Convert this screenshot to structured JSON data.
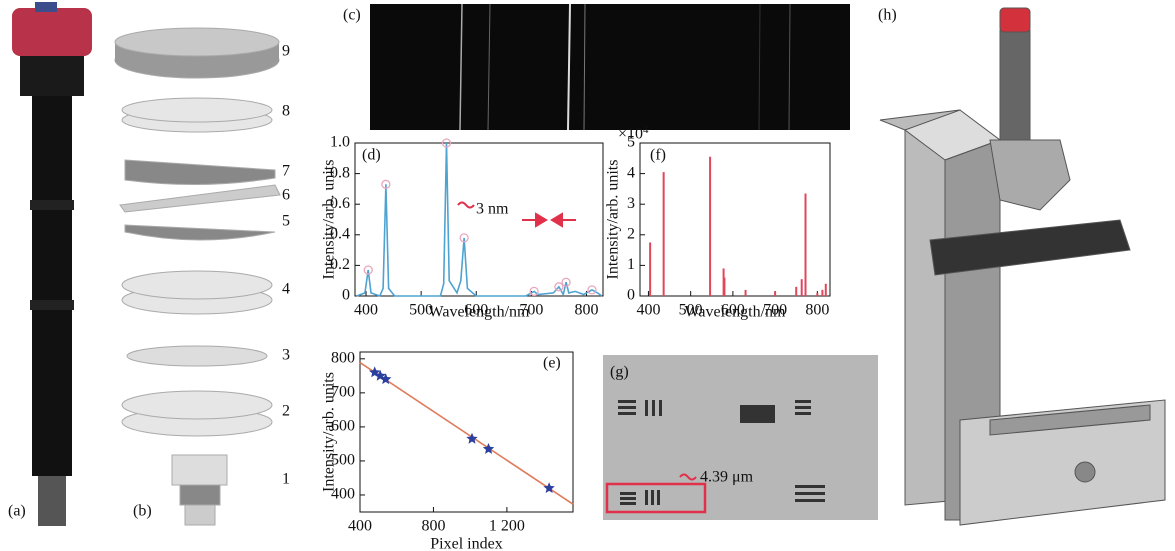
{
  "panel_labels": [
    "(a)",
    "(b)",
    "(c)",
    "(d)",
    "(e)",
    "(f)",
    "(g)",
    "(h)"
  ],
  "layer_numbers": [
    "9",
    "8",
    "7",
    "6",
    "5",
    "4",
    "3",
    "2",
    "1"
  ],
  "chart_data": [
    {
      "type": "line",
      "x_label": "Wavelength/nm",
      "y_label": "Intensity/arb. units",
      "annotation": "3 nm",
      "xlim": [
        380,
        830
      ],
      "xticks": [
        400,
        500,
        600,
        700,
        800
      ],
      "ylim": [
        0,
        1
      ],
      "yticks": [
        0,
        0.2,
        0.4,
        0.6,
        0.8,
        {
          "value": 1,
          "label": "1.0"
        }
      ],
      "series": [
        {
          "color": "#4fa3d1",
          "x": [
            383,
            398,
            404,
            409,
            425,
            431,
            436,
            441,
            452,
            535,
            541,
            546,
            551,
            565,
            572,
            578,
            584,
            600,
            690,
            700,
            705,
            712,
            740,
            750,
            758,
            763,
            768,
            780,
            795,
            810,
            820,
            828
          ],
          "values": [
            0,
            0.02,
            0.17,
            0.02,
            0,
            0.05,
            0.73,
            0.05,
            0,
            0,
            0.08,
            1.0,
            0.1,
            0.02,
            0.1,
            0.38,
            0.05,
            0,
            0,
            0.02,
            0.03,
            0.01,
            0.02,
            0.06,
            0.01,
            0.09,
            0.02,
            0.03,
            0.01,
            0.04,
            0.02,
            0
          ]
        },
        {
          "color": "#e8a6bf",
          "marker": "circle",
          "x": [
            404,
            436,
            546,
            578,
            705,
            750,
            763,
            810
          ],
          "values": [
            0.17,
            0.73,
            1.0,
            0.38,
            0.03,
            0.06,
            0.09,
            0.04
          ]
        }
      ]
    },
    {
      "type": "stem",
      "x_label": "Wavelength/nm",
      "y_label": "Intensity/arb. units",
      "y_scale_label": "×10",
      "y_scale_exponent": "4",
      "color": "#e0475a",
      "xlim": [
        380,
        830
      ],
      "xticks": [
        400,
        500,
        600,
        700,
        800
      ],
      "ylim": [
        0,
        5
      ],
      "yticks": [
        0,
        1,
        2,
        3,
        4,
        5
      ],
      "x": [
        404,
        436,
        546,
        578,
        580,
        630,
        700,
        750,
        763,
        772,
        800,
        812,
        820
      ],
      "values": [
        1.75,
        4.05,
        4.55,
        0.9,
        0.6,
        0.2,
        0.15,
        0.3,
        0.55,
        3.35,
        0.1,
        0.2,
        0.4
      ]
    },
    {
      "type": "scatter",
      "x_label": "Pixel index",
      "y_label": "Intensity/arb. units",
      "xlim": [
        400,
        1560
      ],
      "xticks": [
        400,
        800,
        {
          "value": 1200,
          "label": "1 200"
        }
      ],
      "ylim": [
        350,
        820
      ],
      "yticks": [
        400,
        500,
        600,
        700,
        800
      ],
      "series": [
        {
          "color": "#e07a5a",
          "x": [
            400,
            1560
          ],
          "values": [
            789,
            373
          ]
        },
        {
          "color": "#2b3f9e",
          "marker": "star",
          "x": [
            480,
            510,
            540,
            1010,
            1100,
            1430
          ],
          "values": [
            760,
            750,
            740,
            565,
            535,
            420
          ]
        }
      ]
    }
  ],
  "scale_annotation": "4.39 μm"
}
